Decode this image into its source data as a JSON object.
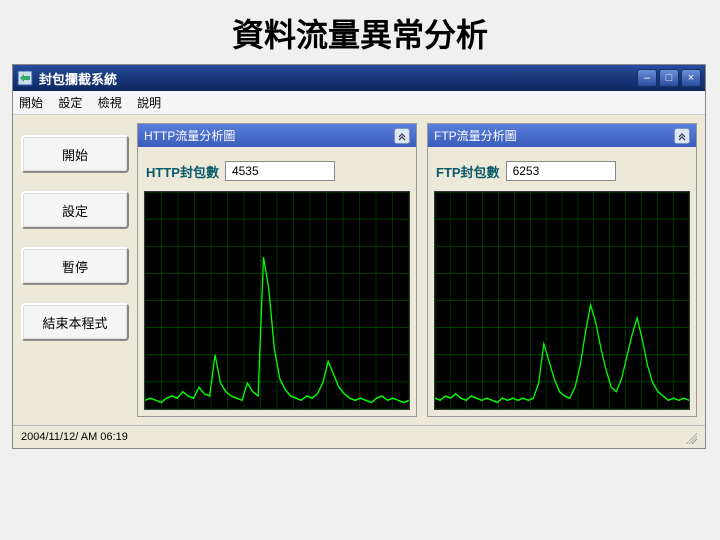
{
  "slide": {
    "title": "資料流量異常分析"
  },
  "window": {
    "title": "封包攔截系統",
    "menu": [
      "開始",
      "設定",
      "檢視",
      "說明"
    ]
  },
  "sidebar": {
    "buttons": [
      "開始",
      "設定",
      "暫停",
      "結束本程式"
    ]
  },
  "panels": {
    "http": {
      "header": "HTTP流量分析圖",
      "packet_label": "HTTP封包數",
      "packet_value": "4535",
      "chart": {
        "type": "line",
        "background_color": "#000000",
        "grid_color": "#005500",
        "line_color": "#00ff00",
        "line_width": 1.3,
        "xlim": [
          0,
          100
        ],
        "ylim": [
          0,
          100
        ],
        "grid_x_step": 6.25,
        "grid_y_step": 12.5,
        "values": [
          4,
          5,
          4,
          3,
          5,
          6,
          5,
          8,
          6,
          5,
          10,
          7,
          6,
          25,
          12,
          8,
          6,
          5,
          4,
          12,
          8,
          6,
          70,
          55,
          28,
          14,
          9,
          6,
          5,
          4,
          6,
          5,
          7,
          12,
          22,
          16,
          10,
          7,
          5,
          4,
          5,
          4,
          3,
          5,
          6,
          4,
          5,
          4,
          3,
          4
        ]
      }
    },
    "ftp": {
      "header": "FTP流量分析圖",
      "packet_label": "FTP封包數",
      "packet_value": "6253",
      "chart": {
        "type": "line",
        "background_color": "#000000",
        "grid_color": "#005500",
        "line_color": "#00ff00",
        "line_width": 1.3,
        "xlim": [
          0,
          100
        ],
        "ylim": [
          0,
          100
        ],
        "grid_x_step": 6.25,
        "grid_y_step": 12.5,
        "values": [
          5,
          4,
          6,
          5,
          7,
          5,
          4,
          6,
          5,
          4,
          5,
          4,
          3,
          5,
          4,
          5,
          4,
          5,
          4,
          5,
          12,
          30,
          22,
          14,
          8,
          6,
          5,
          10,
          20,
          35,
          48,
          40,
          28,
          18,
          10,
          8,
          14,
          24,
          34,
          42,
          32,
          20,
          12,
          8,
          6,
          4,
          5,
          4,
          5,
          4
        ]
      }
    }
  },
  "status": {
    "timestamp": "2004/11/12/ AM 06:19"
  },
  "colors": {
    "window_bg": "#ece9d8",
    "title_gradient_top": "#2a4d9e",
    "title_gradient_bottom": "#0d2860",
    "panel_header_top": "#5a7edc",
    "panel_header_bottom": "#3a5dbc"
  }
}
